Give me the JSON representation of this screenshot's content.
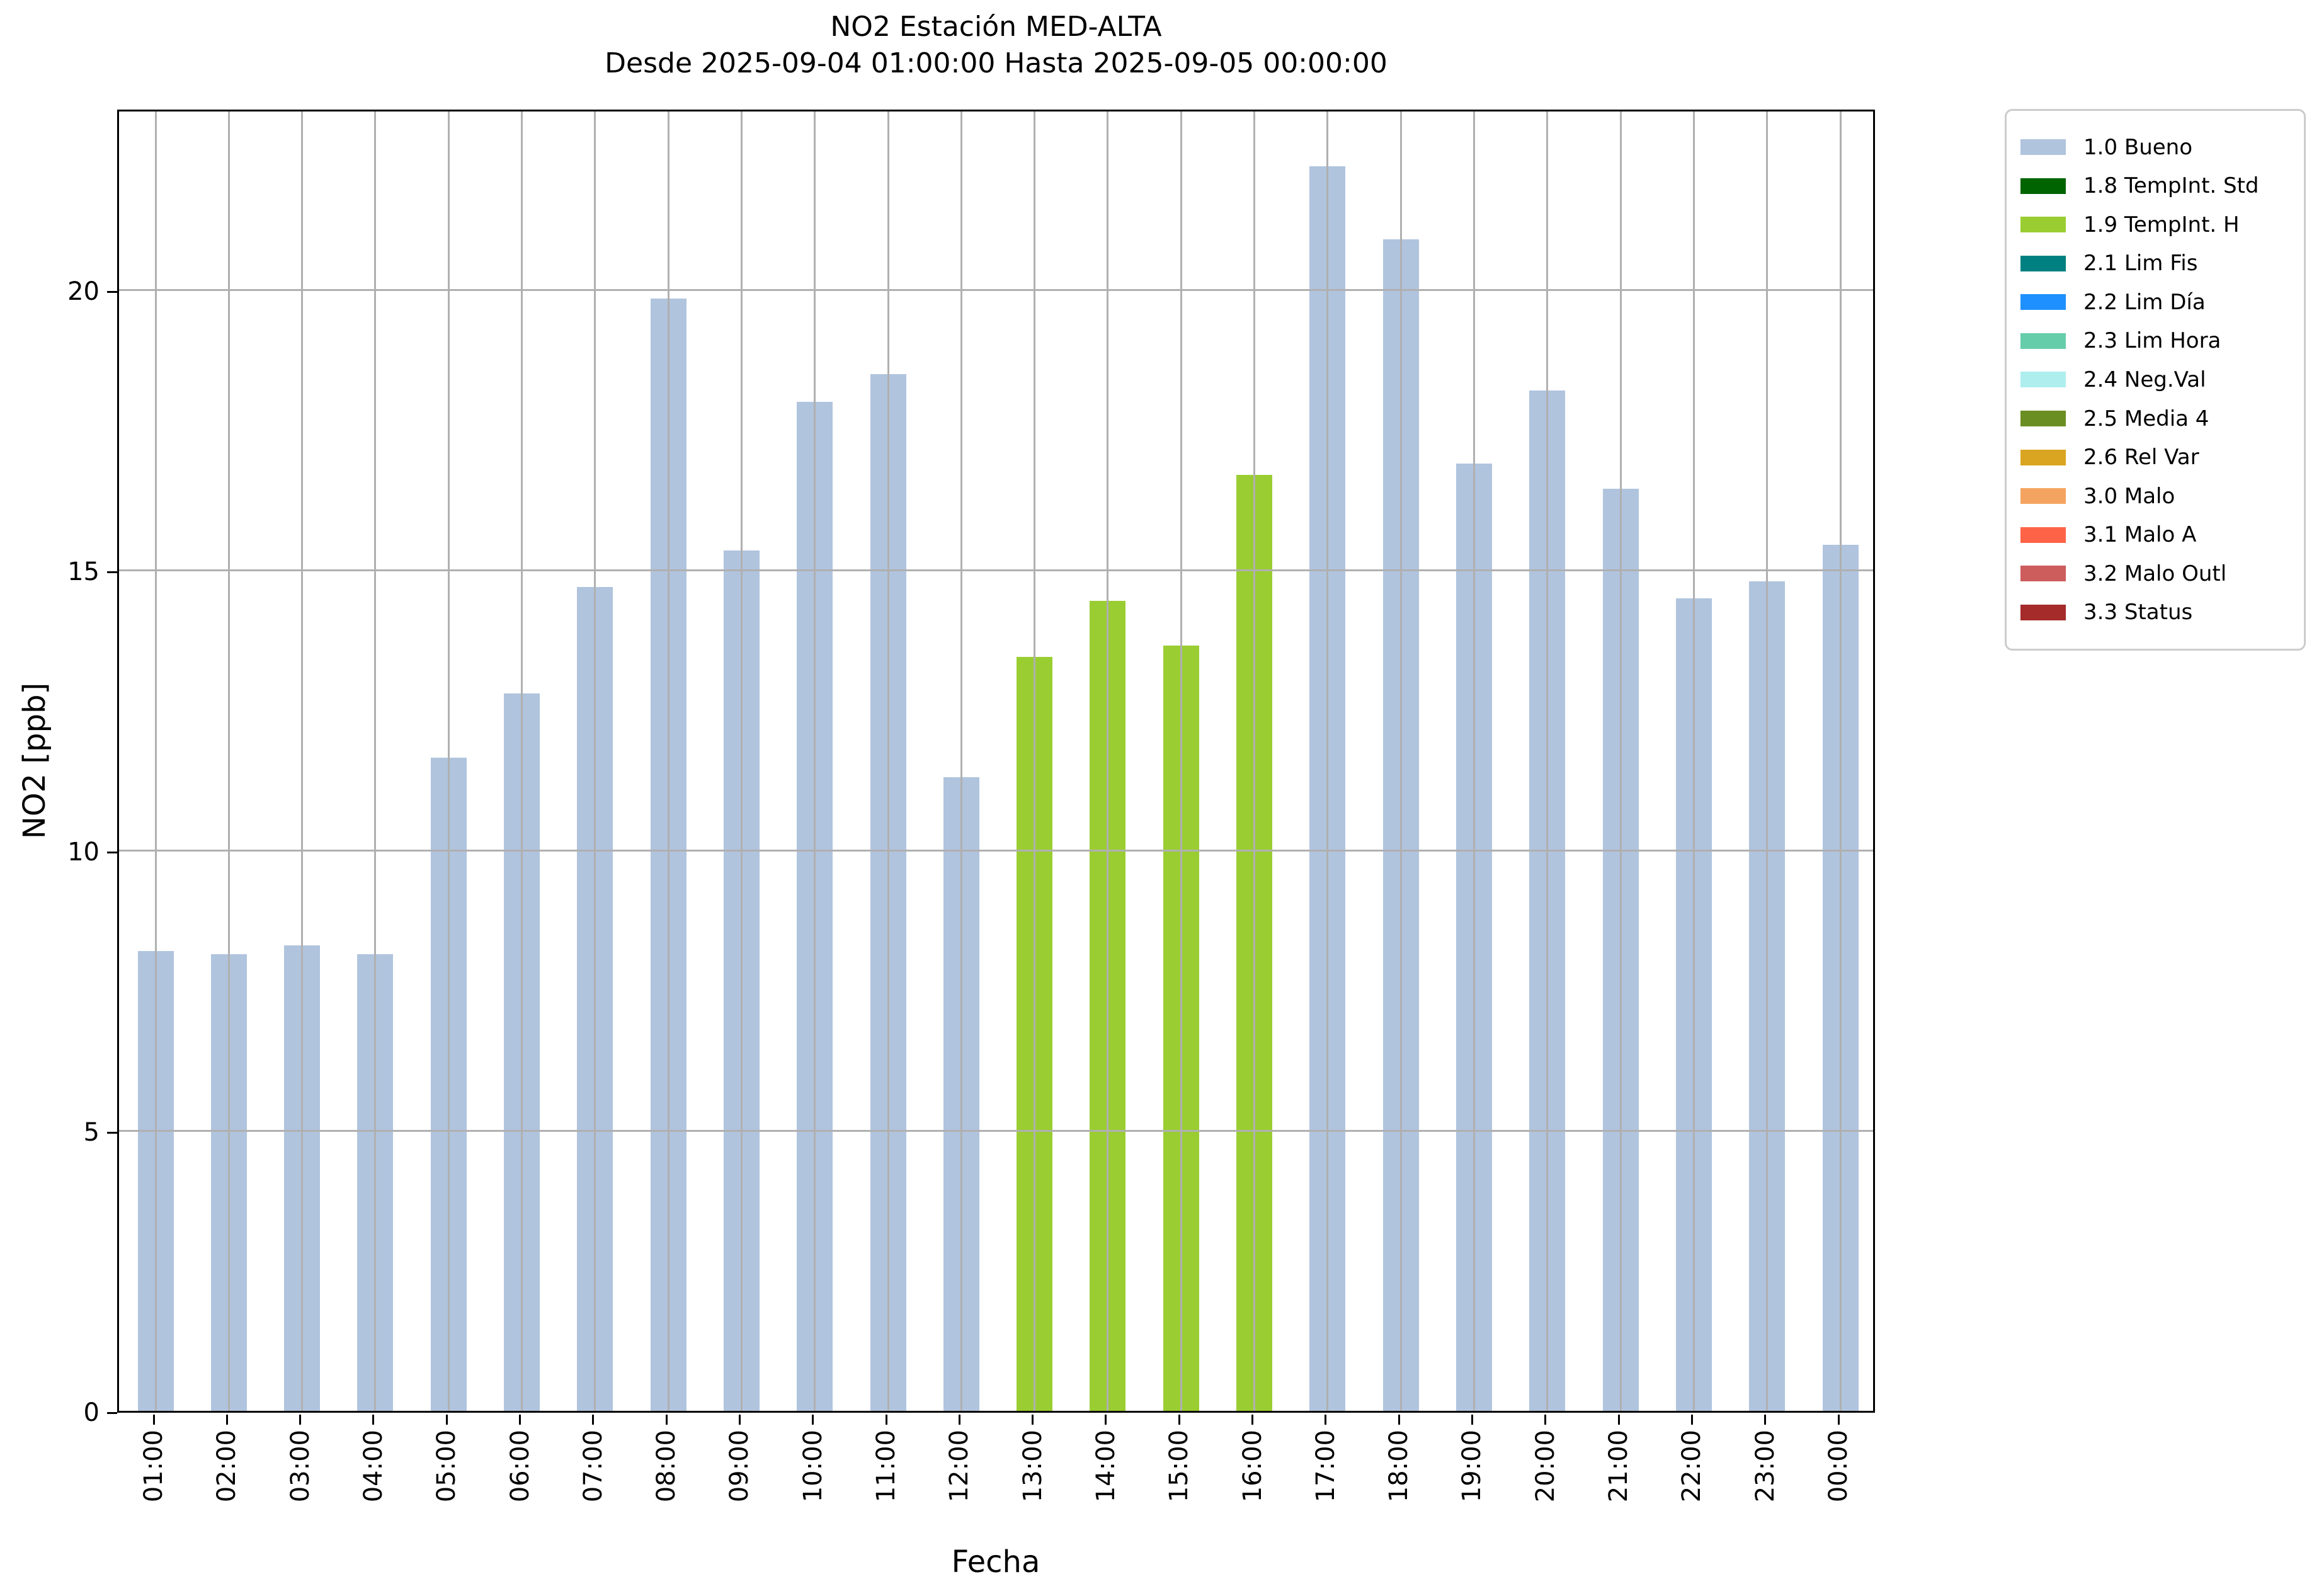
{
  "title": {
    "line1": "NO2 Estación MED-ALTA",
    "line2": "Desde 2025-09-04 01:00:00 Hasta 2025-09-05 00:00:00"
  },
  "axes": {
    "xlabel": "Fecha",
    "ylabel": "NO2 [ppb]"
  },
  "chart_data": {
    "type": "bar",
    "title": "NO2 Estación MED-ALTA",
    "subtitle": "Desde 2025-09-04 01:00:00 Hasta 2025-09-05 00:00:00",
    "xlabel": "Fecha",
    "ylabel": "NO2 [ppb]",
    "ylim": [
      0,
      23.25
    ],
    "yticks": [
      0,
      5,
      10,
      15,
      20
    ],
    "grid": true,
    "legend_position": "right outside",
    "categories": [
      "01:00",
      "02:00",
      "03:00",
      "04:00",
      "05:00",
      "06:00",
      "07:00",
      "08:00",
      "09:00",
      "10:00",
      "11:00",
      "12:00",
      "13:00",
      "14:00",
      "15:00",
      "16:00",
      "17:00",
      "18:00",
      "19:00",
      "20:00",
      "21:00",
      "22:00",
      "23:00",
      "00:00"
    ],
    "values": [
      8.2,
      8.15,
      8.3,
      8.15,
      11.65,
      12.8,
      14.7,
      19.85,
      15.35,
      18.0,
      18.5,
      11.3,
      13.45,
      14.45,
      13.65,
      16.7,
      22.2,
      20.9,
      16.9,
      18.2,
      16.45,
      14.5,
      14.8,
      15.45
    ],
    "statuses": [
      "1.0",
      "1.0",
      "1.0",
      "1.0",
      "1.0",
      "1.0",
      "1.0",
      "1.0",
      "1.0",
      "1.0",
      "1.0",
      "1.0",
      "1.9",
      "1.9",
      "1.9",
      "1.9",
      "1.0",
      "1.0",
      "1.0",
      "1.0",
      "1.0",
      "1.0",
      "1.0",
      "1.0"
    ],
    "status_colors": {
      "1.0": "#B0C4DE",
      "1.8": "#006400",
      "1.9": "#9ACD32",
      "2.1": "#008080",
      "2.2": "#1E90FF",
      "2.3": "#66CDAA",
      "2.4": "#AFEEEE",
      "2.5": "#6B8E23",
      "2.6": "#DAA520",
      "3.0": "#F4A460",
      "3.1": "#FF6347",
      "3.2": "#CD5C5C",
      "3.3": "#A52A2A"
    }
  },
  "legend": {
    "items": [
      {
        "label": "1.0 Bueno",
        "color": "#B0C4DE"
      },
      {
        "label": "1.8 TempInt. Std",
        "color": "#006400"
      },
      {
        "label": "1.9 TempInt. H",
        "color": "#9ACD32"
      },
      {
        "label": "2.1 Lim Fis",
        "color": "#008080"
      },
      {
        "label": "2.2 Lim Día",
        "color": "#1E90FF"
      },
      {
        "label": "2.3 Lim Hora",
        "color": "#66CDAA"
      },
      {
        "label": "2.4 Neg.Val",
        "color": "#AFEEEE"
      },
      {
        "label": "2.5 Media 4",
        "color": "#6B8E23"
      },
      {
        "label": "2.6 Rel Var",
        "color": "#DAA520"
      },
      {
        "label": "3.0 Malo",
        "color": "#F4A460"
      },
      {
        "label": "3.1 Malo A",
        "color": "#FF6347"
      },
      {
        "label": "3.2 Malo Outl",
        "color": "#CD5C5C"
      },
      {
        "label": "3.3 Status",
        "color": "#A52A2A"
      }
    ]
  }
}
